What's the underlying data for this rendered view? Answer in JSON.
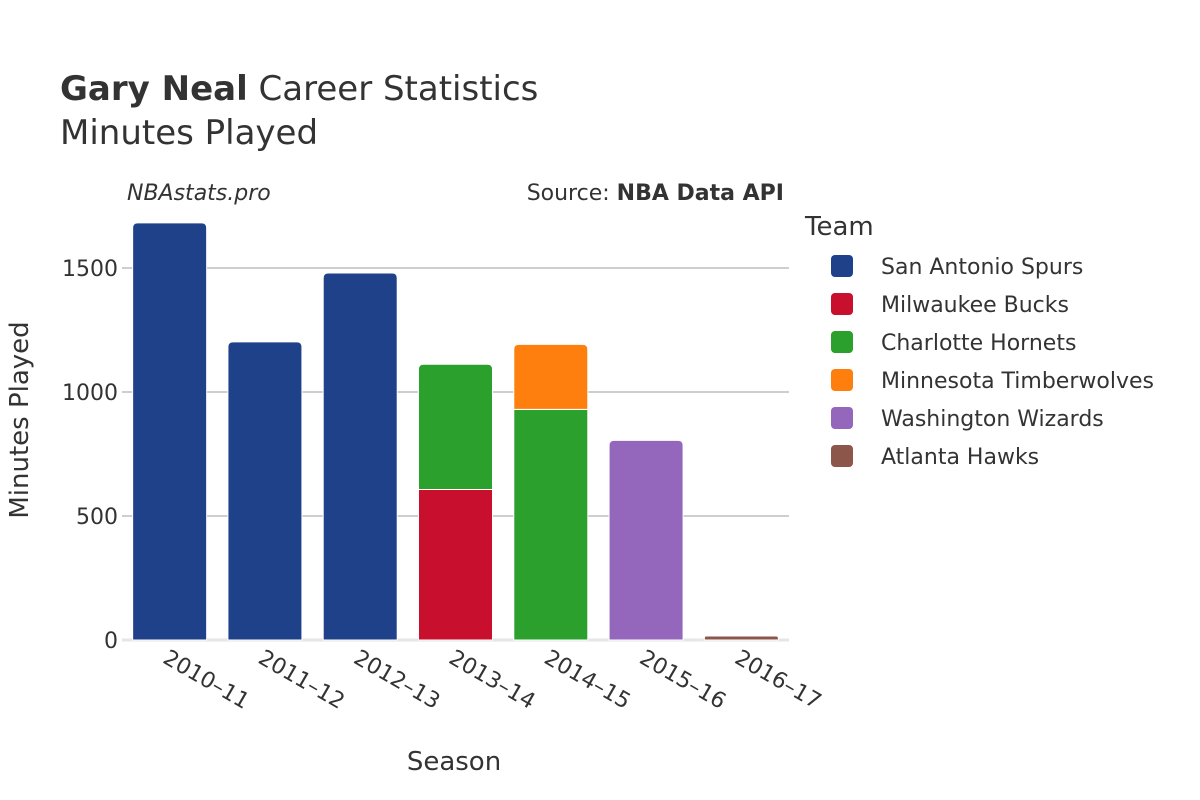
{
  "chart_data": {
    "type": "bar",
    "stacked": true,
    "title": {
      "player": "Gary Neal",
      "rest": "Career Statistics",
      "subtitle": "Minutes Played"
    },
    "credit_left": "NBAstats.pro",
    "credit_right_prefix": "Source: ",
    "credit_right_bold": "NBA Data API",
    "xlabel": "Season",
    "ylabel": "Minutes Played",
    "ylim": [
      0,
      1700
    ],
    "yticks": [
      0,
      500,
      1000,
      1500
    ],
    "categories": [
      "2010–11",
      "2011–12",
      "2012–13",
      "2013–14",
      "2014–15",
      "2015–16",
      "2016–17"
    ],
    "legend_title": "Team",
    "series": [
      {
        "name": "San Antonio Spurs",
        "color": "#1f4189",
        "values": [
          1682,
          1202,
          1480,
          0,
          0,
          0,
          0
        ]
      },
      {
        "name": "Milwaukee Bucks",
        "color": "#c8102e",
        "values": [
          0,
          0,
          0,
          607,
          0,
          0,
          0
        ]
      },
      {
        "name": "Charlotte Hornets",
        "color": "#2ca02c",
        "values": [
          0,
          0,
          0,
          505,
          930,
          0,
          0
        ]
      },
      {
        "name": "Minnesota Timberwolves",
        "color": "#ff7f0e",
        "values": [
          0,
          0,
          0,
          0,
          262,
          0,
          0
        ]
      },
      {
        "name": "Washington Wizards",
        "color": "#9467bd",
        "values": [
          0,
          0,
          0,
          0,
          0,
          805,
          0
        ]
      },
      {
        "name": "Atlanta Hawks",
        "color": "#8c564b",
        "values": [
          0,
          0,
          0,
          0,
          0,
          0,
          16
        ]
      }
    ]
  }
}
